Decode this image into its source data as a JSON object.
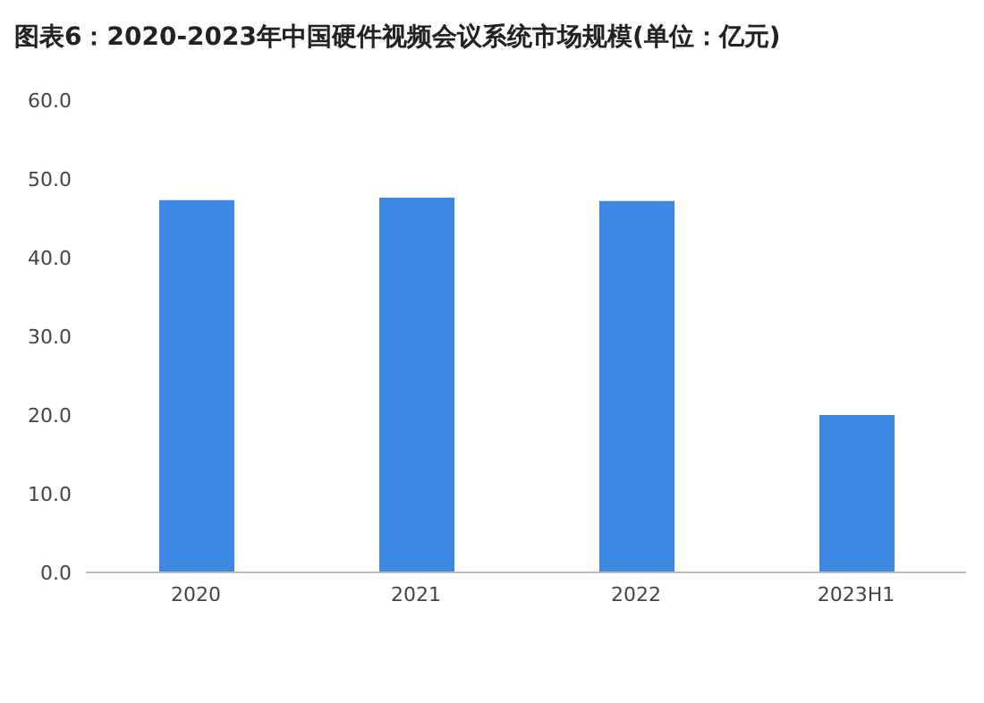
{
  "chart_data": {
    "type": "bar",
    "title": "图表6：2020-2023年中国硬件视频会议系统市场规模(单位：亿元)",
    "categories": [
      "2020",
      "2021",
      "2022",
      "2023H1"
    ],
    "values": [
      47.3,
      47.6,
      47.2,
      20.0
    ],
    "color": "#3d88e3",
    "ylim": [
      0,
      60
    ],
    "yticks": [
      {
        "value": 0,
        "label": "0.0"
      },
      {
        "value": 10,
        "label": "10.0"
      },
      {
        "value": 20,
        "label": "20.0"
      },
      {
        "value": 30,
        "label": "30.0"
      },
      {
        "value": 40,
        "label": "40.0"
      },
      {
        "value": 50,
        "label": "50.0"
      },
      {
        "value": 60,
        "label": "60.0"
      }
    ],
    "grid": false
  }
}
